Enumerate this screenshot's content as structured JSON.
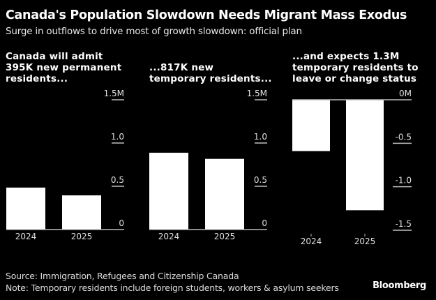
{
  "header": {
    "title": "Canada's Population Slowdown Needs Migrant Mass Exodus",
    "subtitle": "Surge in outflows to drive most of growth slowdown: official plan"
  },
  "chart_data": [
    {
      "type": "bar",
      "title_lines": [
        "Canada will admit",
        "395K new permanent",
        "residents..."
      ],
      "categories": [
        "2024",
        "2025"
      ],
      "values": [
        0.485,
        0.395
      ],
      "ylabel": "",
      "xlabel": "",
      "unit": "M",
      "ylim": [
        0,
        1.5
      ],
      "yticks": [
        {
          "value": 1.5,
          "label": "1.5M"
        },
        {
          "value": 1.0,
          "label": "1.0"
        },
        {
          "value": 0.5,
          "label": "0.5"
        },
        {
          "value": 0,
          "label": "0"
        }
      ],
      "grid": false
    },
    {
      "type": "bar",
      "title_lines": [
        "...817K new",
        "temporary residents..."
      ],
      "categories": [
        "2024",
        "2025"
      ],
      "values": [
        0.888,
        0.817
      ],
      "ylabel": "",
      "xlabel": "",
      "unit": "M",
      "ylim": [
        0,
        1.5
      ],
      "yticks": [
        {
          "value": 1.5,
          "label": "1.5M"
        },
        {
          "value": 1.0,
          "label": "1.0"
        },
        {
          "value": 0.5,
          "label": "0.5"
        },
        {
          "value": 0,
          "label": "0"
        }
      ],
      "grid": false
    },
    {
      "type": "bar",
      "title_lines": [
        "...and expects 1.3M",
        "temporary residents to",
        "leave or change status"
      ],
      "categories": [
        "2024",
        "2025"
      ],
      "values": [
        -0.59,
        -1.27
      ],
      "ylabel": "",
      "xlabel": "",
      "unit": "M",
      "ylim": [
        -1.5,
        0
      ],
      "yticks": [
        {
          "value": 0,
          "label": "0M"
        },
        {
          "value": -0.5,
          "label": "-0.5"
        },
        {
          "value": -1.0,
          "label": "-1.0"
        },
        {
          "value": -1.5,
          "label": "-1.5"
        }
      ],
      "grid": false
    }
  ],
  "footer": {
    "source": "Source: Immigration, Refugees and Citizenship Canada",
    "note": "Note: Temporary residents include foreign students, workers & asylum seekers",
    "brand": "Bloomberg"
  },
  "colors": {
    "background": "#000000",
    "bar": "#ffffff",
    "axis": "#bdbdbd"
  }
}
